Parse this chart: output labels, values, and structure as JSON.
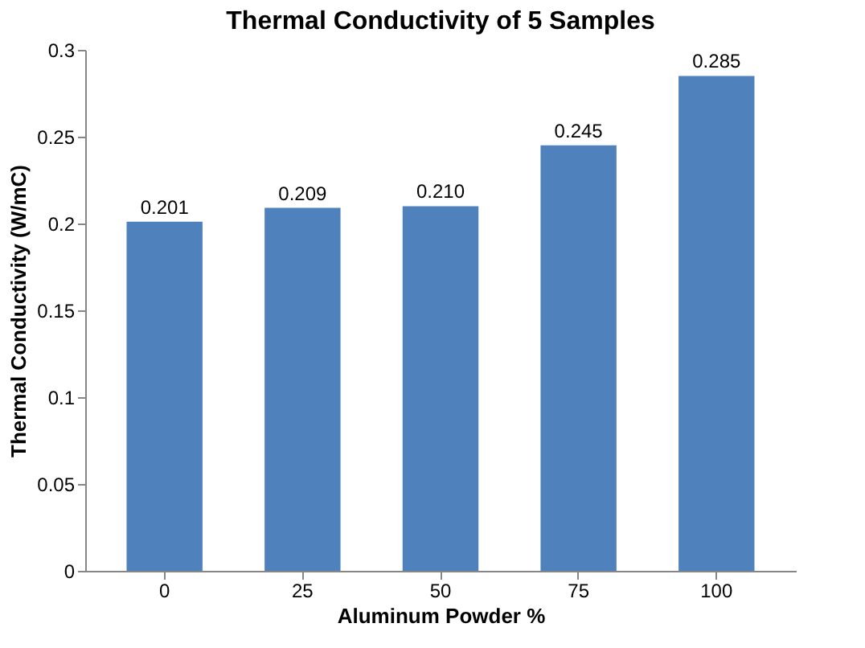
{
  "chart_data": {
    "type": "bar",
    "title": "Thermal Conductivity of 5 Samples",
    "xlabel": "Aluminum Powder %",
    "ylabel": "Thermal Conductivity (W/mC)",
    "categories": [
      "0",
      "25",
      "50",
      "75",
      "100"
    ],
    "values": [
      0.201,
      0.209,
      0.21,
      0.245,
      0.285
    ],
    "value_labels": [
      "0.201",
      "0.209",
      "0.210",
      "0.245",
      "0.285"
    ],
    "color": "#4f81bd",
    "ylim": [
      0,
      0.3
    ],
    "yticks": [
      0,
      0.05,
      0.1,
      0.15,
      0.2,
      0.25,
      0.3
    ],
    "grid": false
  }
}
